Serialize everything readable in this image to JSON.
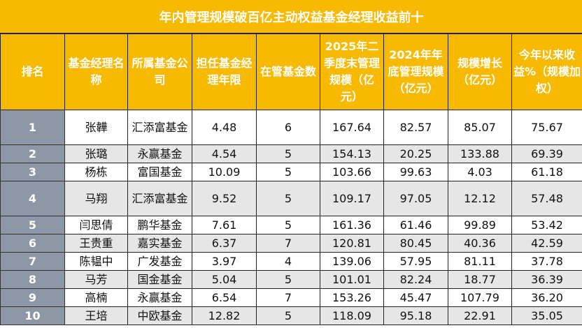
{
  "title": "年内管理规模破百亿主动权益基金经理收益前十",
  "headers": [
    "排名",
    "基金经理名称",
    "所属基金公司",
    "担任基金经理年限",
    "在管基金数",
    "2025年二季度末管理规模（亿元）",
    "2024年年底管理规模（亿元）",
    "规模增长（亿元）",
    "今年以来收益%（规模加权）"
  ],
  "rows": [
    [
      "1",
      "张韡",
      "汇添富基金",
      "4.48",
      "6",
      "167.64",
      "82.57",
      "85.07",
      "75.67"
    ],
    [
      "2",
      "张璐",
      "永赢基金",
      "4.54",
      "5",
      "154.13",
      "20.25",
      "133.88",
      "69.39"
    ],
    [
      "3",
      "杨栋",
      "富国基金",
      "10.09",
      "5",
      "103.66",
      "99.63",
      "4.03",
      "61.18"
    ],
    [
      "4",
      "马翔",
      "汇添富基金",
      "9.52",
      "5",
      "109.17",
      "97.05",
      "12.12",
      "57.48"
    ],
    [
      "5",
      "闫思倩",
      "鹏华基金",
      "7.61",
      "5",
      "161.36",
      "61.46",
      "99.89",
      "53.42"
    ],
    [
      "6",
      "王贵重",
      "嘉实基金",
      "6.37",
      "7",
      "120.81",
      "80.45",
      "40.36",
      "42.59"
    ],
    [
      "7",
      "陈韫中",
      "广发基金",
      "3.97",
      "4",
      "139.06",
      "57.95",
      "81.11",
      "37.78"
    ],
    [
      "8",
      "马芳",
      "国金基金",
      "5.04",
      "5",
      "101.01",
      "82.24",
      "18.77",
      "36.39"
    ],
    [
      "9",
      "高楠",
      "永赢基金",
      "6.54",
      "7",
      "153.26",
      "45.47",
      "107.79",
      "36.20"
    ],
    [
      "10",
      "王培",
      "中欧基金",
      "12.82",
      "5",
      "118.09",
      "95.18",
      "22.91",
      "35.05"
    ]
  ],
  "colors": {
    "header": "#F7BA00",
    "rank_column": "#8D97A6",
    "alt_row": "#E6E6E6"
  }
}
